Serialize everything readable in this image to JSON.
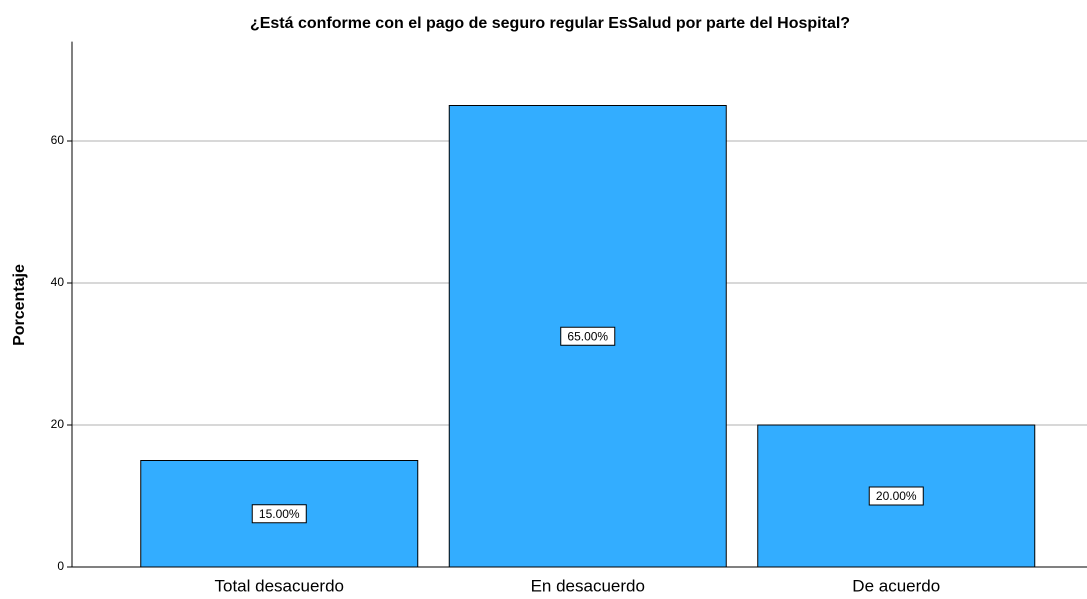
{
  "chart_data": {
    "type": "bar",
    "title": "¿Está conforme con el pago de seguro regular EsSalud por parte del Hospital?",
    "y_label": "Porcentaje",
    "categories": [
      "Total desacuerdo",
      "En desacuerdo",
      "De acuerdo"
    ],
    "values": [
      15,
      65,
      20
    ],
    "value_labels": [
      "15.00%",
      "65.00%",
      "20.00%"
    ],
    "color": "#33adff",
    "ylim": [
      0,
      74
    ],
    "yticks": [
      0,
      20,
      40,
      60
    ],
    "grid": true
  }
}
